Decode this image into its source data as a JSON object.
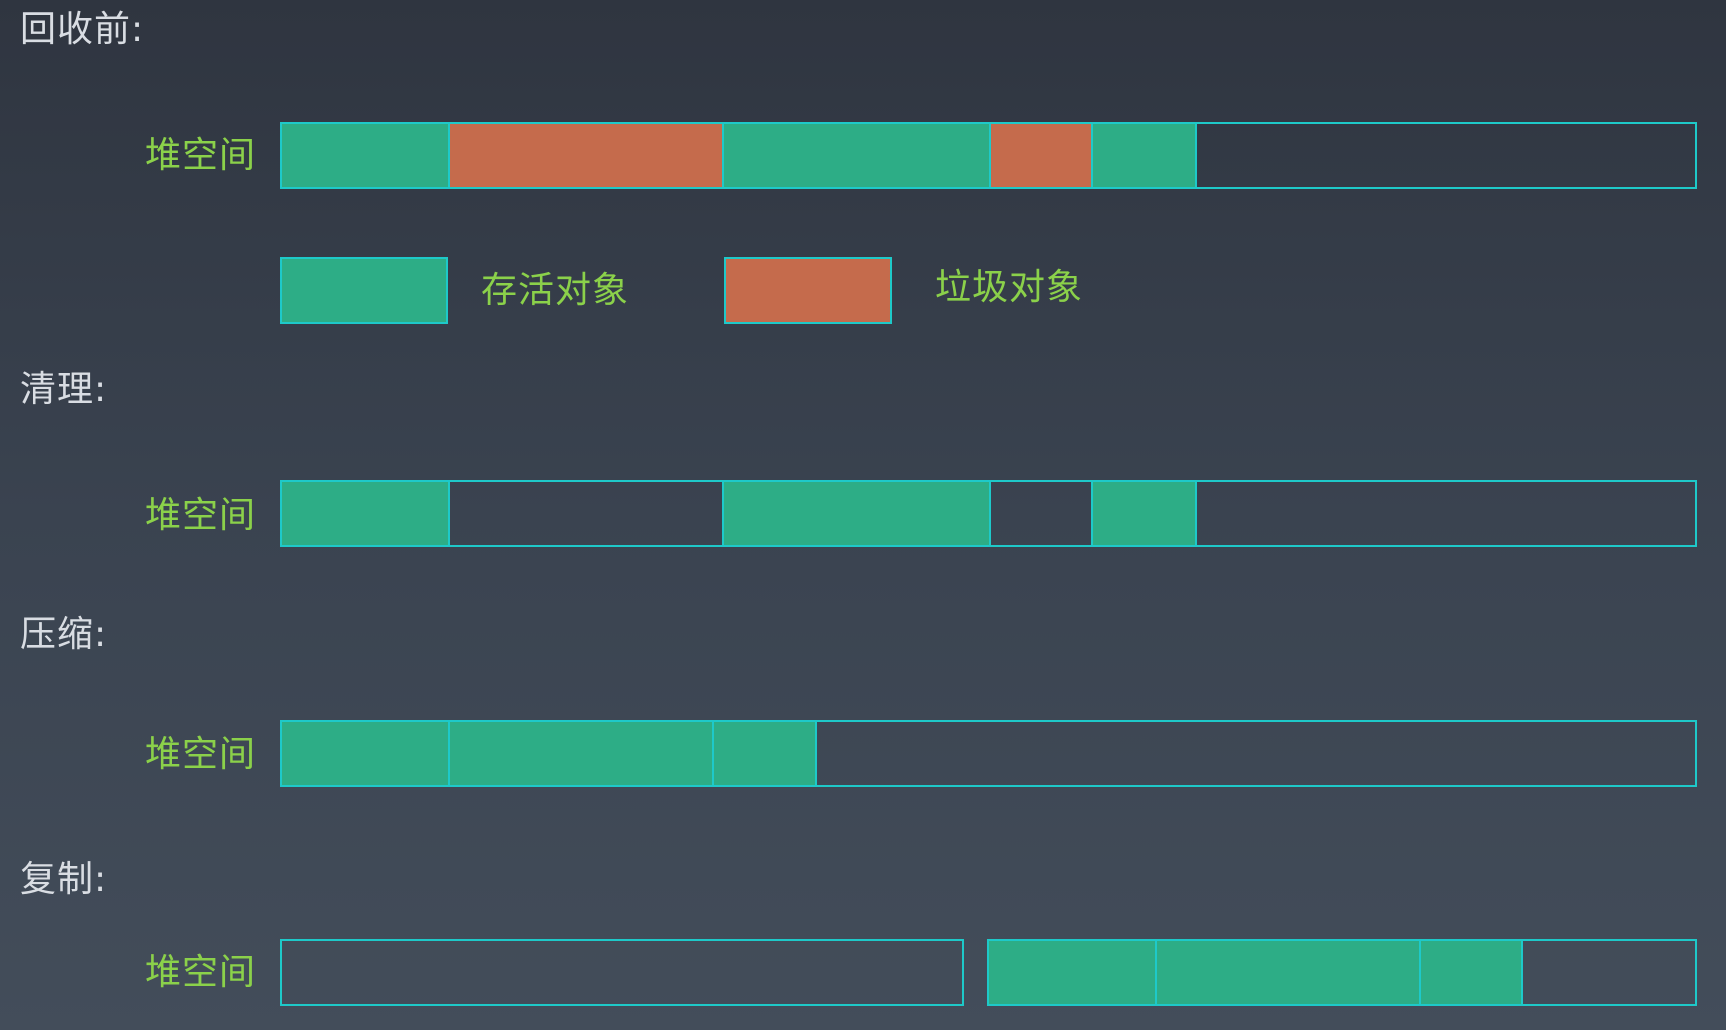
{
  "colors": {
    "live": "#2dad86",
    "garbage": "#c56b4c",
    "empty": "transparent",
    "border": "#1ec9c9",
    "label": "#8bd14a",
    "title": "#d9dde3"
  },
  "sections": {
    "before": {
      "title": "回收前:",
      "row_label": "堆空间"
    },
    "sweep": {
      "title": "清理:",
      "row_label": "堆空间"
    },
    "compact": {
      "title": "压缩:",
      "row_label": "堆空间"
    },
    "copy": {
      "title": "复制:",
      "row_label": "堆空间"
    }
  },
  "legend": {
    "live_label": "存活对象",
    "garbage_label": "垃圾对象"
  },
  "heaps": {
    "before": [
      {
        "type": "live",
        "size": 166
      },
      {
        "type": "garbage",
        "size": 275
      },
      {
        "type": "live",
        "size": 267
      },
      {
        "type": "garbage",
        "size": 102
      },
      {
        "type": "live",
        "size": 104
      },
      {
        "type": "empty",
        "size": 501
      }
    ],
    "sweep": [
      {
        "type": "live",
        "size": 166
      },
      {
        "type": "empty",
        "size": 275
      },
      {
        "type": "live",
        "size": 267
      },
      {
        "type": "empty",
        "size": 102
      },
      {
        "type": "live",
        "size": 104
      },
      {
        "type": "empty",
        "size": 501
      }
    ],
    "compact": [
      {
        "type": "live",
        "size": 166
      },
      {
        "type": "live",
        "size": 265
      },
      {
        "type": "live",
        "size": 103
      },
      {
        "type": "empty",
        "size": 881
      }
    ],
    "copy_from": [
      {
        "type": "empty",
        "size": 1
      }
    ],
    "copy_to": [
      {
        "type": "live",
        "size": 166
      },
      {
        "type": "live",
        "size": 265
      },
      {
        "type": "live",
        "size": 103
      },
      {
        "type": "empty",
        "size": 174
      }
    ]
  }
}
